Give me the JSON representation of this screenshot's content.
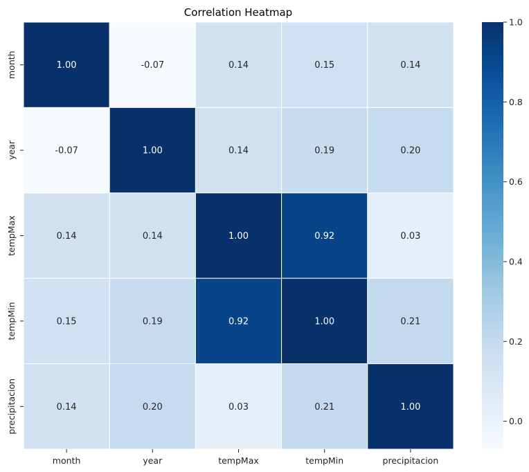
{
  "chart_data": {
    "type": "heatmap",
    "title": "Correlation Heatmap",
    "xlabel": "",
    "ylabel": "",
    "x_categories": [
      "month",
      "year",
      "tempMax",
      "tempMin",
      "precipitacion"
    ],
    "y_categories": [
      "month",
      "year",
      "tempMax",
      "tempMin",
      "precipitacion"
    ],
    "values": [
      [
        1.0,
        -0.07,
        0.14,
        0.15,
        0.14
      ],
      [
        -0.07,
        1.0,
        0.14,
        0.19,
        0.2
      ],
      [
        0.14,
        0.14,
        1.0,
        0.92,
        0.03
      ],
      [
        0.15,
        0.19,
        0.92,
        1.0,
        0.21
      ],
      [
        0.14,
        0.2,
        0.03,
        0.21,
        1.0
      ]
    ],
    "value_format": "0.00",
    "colormap": "Blues",
    "color_range": [
      -0.07,
      1.0
    ],
    "colorbar_ticks": [
      "0.0",
      "0.2",
      "0.4",
      "0.6",
      "0.8",
      "1.0"
    ],
    "colorbar_tick_values": [
      0.0,
      0.2,
      0.4,
      0.6,
      0.8,
      1.0
    ],
    "grid": true,
    "legend": "colorbar-right"
  }
}
